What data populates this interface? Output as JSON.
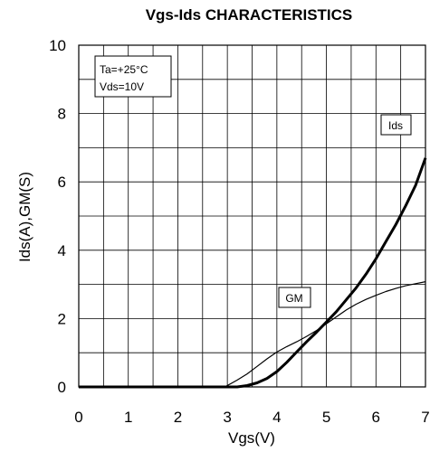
{
  "chart_data": {
    "type": "line",
    "title": "Vgs-Ids CHARACTERISTICS",
    "xlabel": "Vgs(V)",
    "ylabel": "Ids(A),GM(S)",
    "xlim": [
      0,
      7
    ],
    "ylim": [
      0,
      10
    ],
    "x_ticks": [
      "0",
      "1",
      "2",
      "3",
      "4",
      "5",
      "6",
      "7"
    ],
    "y_ticks": [
      "0",
      "2",
      "4",
      "6",
      "8",
      "10"
    ],
    "grid": true,
    "conditions": [
      "Ta=+25°C",
      "Vds=10V"
    ],
    "series": [
      {
        "name": "Ids",
        "line": "thick",
        "x": [
          0,
          3.2,
          3.4,
          3.6,
          3.8,
          4.0,
          4.2,
          4.4,
          4.6,
          4.8,
          5.0,
          5.2,
          5.4,
          5.6,
          5.8,
          6.0,
          6.2,
          6.4,
          6.6,
          6.8,
          7.0
        ],
        "values": [
          0,
          0,
          0.04,
          0.12,
          0.25,
          0.45,
          0.72,
          1.02,
          1.32,
          1.6,
          1.9,
          2.2,
          2.55,
          2.9,
          3.3,
          3.75,
          4.25,
          4.75,
          5.3,
          5.9,
          6.7
        ]
      },
      {
        "name": "GM",
        "line": "thin",
        "x": [
          0,
          2.95,
          3.2,
          3.4,
          3.6,
          3.8,
          4.0,
          4.2,
          4.4,
          4.6,
          4.8,
          5.0,
          5.2,
          5.4,
          5.6,
          5.8,
          6.0,
          6.2,
          6.4,
          6.6,
          6.8,
          7.0
        ],
        "values": [
          0,
          0,
          0.2,
          0.38,
          0.6,
          0.82,
          1.02,
          1.18,
          1.32,
          1.48,
          1.65,
          1.85,
          2.05,
          2.25,
          2.42,
          2.56,
          2.68,
          2.79,
          2.88,
          2.96,
          3.02,
          3.08
        ]
      }
    ]
  }
}
